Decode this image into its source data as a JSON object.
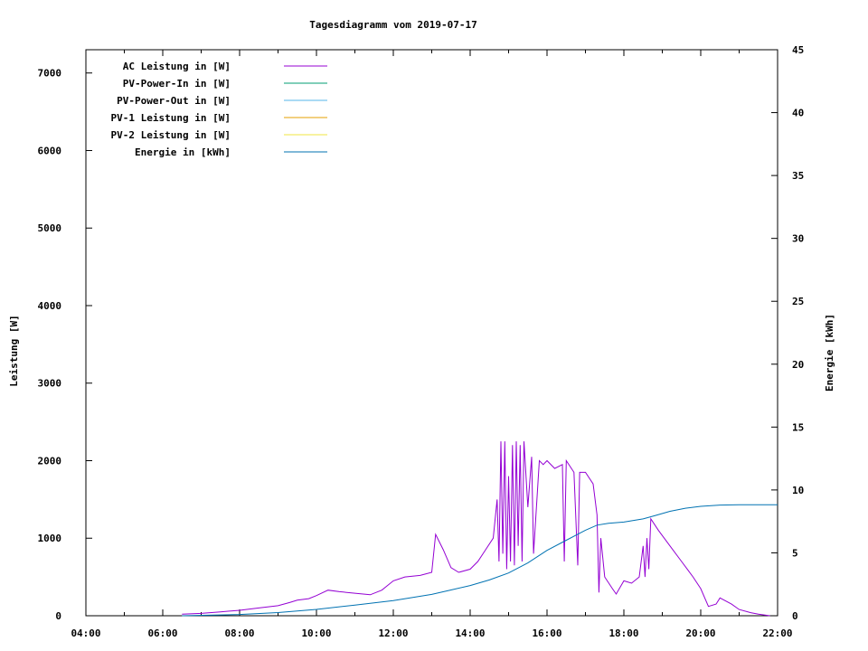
{
  "chart_data": {
    "type": "line",
    "title": "Tagesdiagramm vom 2019-07-17",
    "ylabel": "Leistung [W]",
    "y2label": "Energie [kWh]",
    "xlim": [
      4,
      22
    ],
    "ylim": [
      0,
      7300
    ],
    "y2lim": [
      0,
      45
    ],
    "xticks": [
      "04:00",
      "06:00",
      "08:00",
      "10:00",
      "12:00",
      "14:00",
      "16:00",
      "18:00",
      "20:00",
      "22:00"
    ],
    "yticks": [
      0,
      1000,
      2000,
      3000,
      4000,
      5000,
      6000,
      7000
    ],
    "y2ticks": [
      0,
      5,
      10,
      15,
      20,
      25,
      30,
      35,
      40,
      45
    ],
    "legend_position": "top-left",
    "series": [
      {
        "name": "AC Leistung in [W]",
        "color": "#9400d3",
        "axis": "y",
        "points": [
          [
            6.5,
            20
          ],
          [
            7,
            30
          ],
          [
            7.5,
            50
          ],
          [
            8,
            70
          ],
          [
            8.5,
            100
          ],
          [
            9,
            130
          ],
          [
            9.3,
            170
          ],
          [
            9.5,
            200
          ],
          [
            9.8,
            220
          ],
          [
            10,
            260
          ],
          [
            10.3,
            330
          ],
          [
            10.6,
            310
          ],
          [
            11,
            290
          ],
          [
            11.4,
            270
          ],
          [
            11.7,
            330
          ],
          [
            12,
            450
          ],
          [
            12.3,
            500
          ],
          [
            12.7,
            520
          ],
          [
            13,
            560
          ],
          [
            13.1,
            1050
          ],
          [
            13.3,
            850
          ],
          [
            13.5,
            620
          ],
          [
            13.7,
            560
          ],
          [
            14,
            600
          ],
          [
            14.2,
            700
          ],
          [
            14.4,
            850
          ],
          [
            14.6,
            1000
          ],
          [
            14.7,
            1500
          ],
          [
            14.75,
            700
          ],
          [
            14.8,
            2250
          ],
          [
            14.85,
            800
          ],
          [
            14.9,
            2250
          ],
          [
            14.95,
            600
          ],
          [
            15.0,
            1800
          ],
          [
            15.05,
            700
          ],
          [
            15.1,
            2200
          ],
          [
            15.15,
            650
          ],
          [
            15.2,
            2250
          ],
          [
            15.25,
            900
          ],
          [
            15.3,
            2200
          ],
          [
            15.35,
            700
          ],
          [
            15.4,
            2250
          ],
          [
            15.5,
            1400
          ],
          [
            15.6,
            2050
          ],
          [
            15.65,
            800
          ],
          [
            15.8,
            2000
          ],
          [
            15.9,
            1950
          ],
          [
            16,
            2000
          ],
          [
            16.2,
            1900
          ],
          [
            16.4,
            1950
          ],
          [
            16.45,
            700
          ],
          [
            16.5,
            2000
          ],
          [
            16.7,
            1850
          ],
          [
            16.8,
            650
          ],
          [
            16.85,
            1850
          ],
          [
            17,
            1850
          ],
          [
            17.2,
            1700
          ],
          [
            17.3,
            1300
          ],
          [
            17.35,
            300
          ],
          [
            17.4,
            1000
          ],
          [
            17.5,
            500
          ],
          [
            17.7,
            350
          ],
          [
            17.8,
            280
          ],
          [
            18,
            450
          ],
          [
            18.2,
            420
          ],
          [
            18.4,
            500
          ],
          [
            18.5,
            900
          ],
          [
            18.55,
            500
          ],
          [
            18.6,
            1000
          ],
          [
            18.65,
            600
          ],
          [
            18.7,
            1250
          ],
          [
            18.9,
            1100
          ],
          [
            19.2,
            900
          ],
          [
            19.5,
            700
          ],
          [
            19.8,
            500
          ],
          [
            20,
            350
          ],
          [
            20.2,
            120
          ],
          [
            20.4,
            150
          ],
          [
            20.5,
            230
          ],
          [
            20.8,
            150
          ],
          [
            21,
            80
          ],
          [
            21.3,
            40
          ],
          [
            21.5,
            20
          ],
          [
            21.8,
            0
          ]
        ]
      },
      {
        "name": "PV-Power-In in [W]",
        "color": "#009e73",
        "axis": "y",
        "points": []
      },
      {
        "name": "PV-Power-Out in [W]",
        "color": "#56b4e9",
        "axis": "y",
        "points": []
      },
      {
        "name": "PV-1 Leistung in [W]",
        "color": "#e69f00",
        "axis": "y",
        "points": []
      },
      {
        "name": "PV-2 Leistung in [W]",
        "color": "#f0e442",
        "axis": "y",
        "points": []
      },
      {
        "name": "Energie in [kWh]",
        "color": "#0072b2",
        "axis": "y2",
        "points": [
          [
            6.5,
            0
          ],
          [
            8,
            0.1
          ],
          [
            9,
            0.25
          ],
          [
            10,
            0.5
          ],
          [
            11,
            0.85
          ],
          [
            12,
            1.2
          ],
          [
            13,
            1.7
          ],
          [
            13.5,
            2.05
          ],
          [
            14,
            2.4
          ],
          [
            14.5,
            2.85
          ],
          [
            15,
            3.4
          ],
          [
            15.5,
            4.2
          ],
          [
            16,
            5.2
          ],
          [
            16.5,
            6.0
          ],
          [
            17,
            6.8
          ],
          [
            17.3,
            7.2
          ],
          [
            17.6,
            7.35
          ],
          [
            18,
            7.45
          ],
          [
            18.5,
            7.7
          ],
          [
            18.8,
            7.95
          ],
          [
            19.2,
            8.3
          ],
          [
            19.6,
            8.55
          ],
          [
            20,
            8.7
          ],
          [
            20.5,
            8.8
          ],
          [
            21,
            8.82
          ],
          [
            22,
            8.82
          ]
        ]
      }
    ]
  }
}
